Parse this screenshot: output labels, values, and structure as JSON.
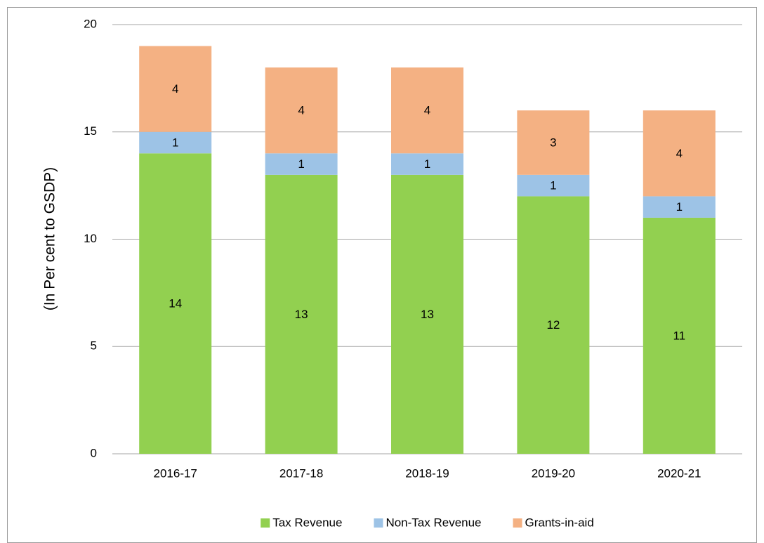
{
  "chart_data": {
    "type": "stacked_bar",
    "y_label": "(In Per cent to GSDP)",
    "categories": [
      "2016-17",
      "2017-18",
      "2018-19",
      "2019-20",
      "2020-21"
    ],
    "series": [
      {
        "name": "Tax Revenue",
        "color": "#92d050",
        "values": [
          14,
          13,
          13,
          12,
          11
        ]
      },
      {
        "name": "Non-Tax Revenue",
        "color": "#9dc3e6",
        "values": [
          1,
          1,
          1,
          1,
          1
        ]
      },
      {
        "name": "Grants-in-aid",
        "color": "#f4b183",
        "values": [
          4,
          4,
          4,
          3,
          4
        ]
      }
    ],
    "ylim": [
      0,
      20
    ],
    "yticks": [
      0,
      5,
      10,
      15,
      20
    ],
    "grid": true,
    "legend": "bottom"
  }
}
